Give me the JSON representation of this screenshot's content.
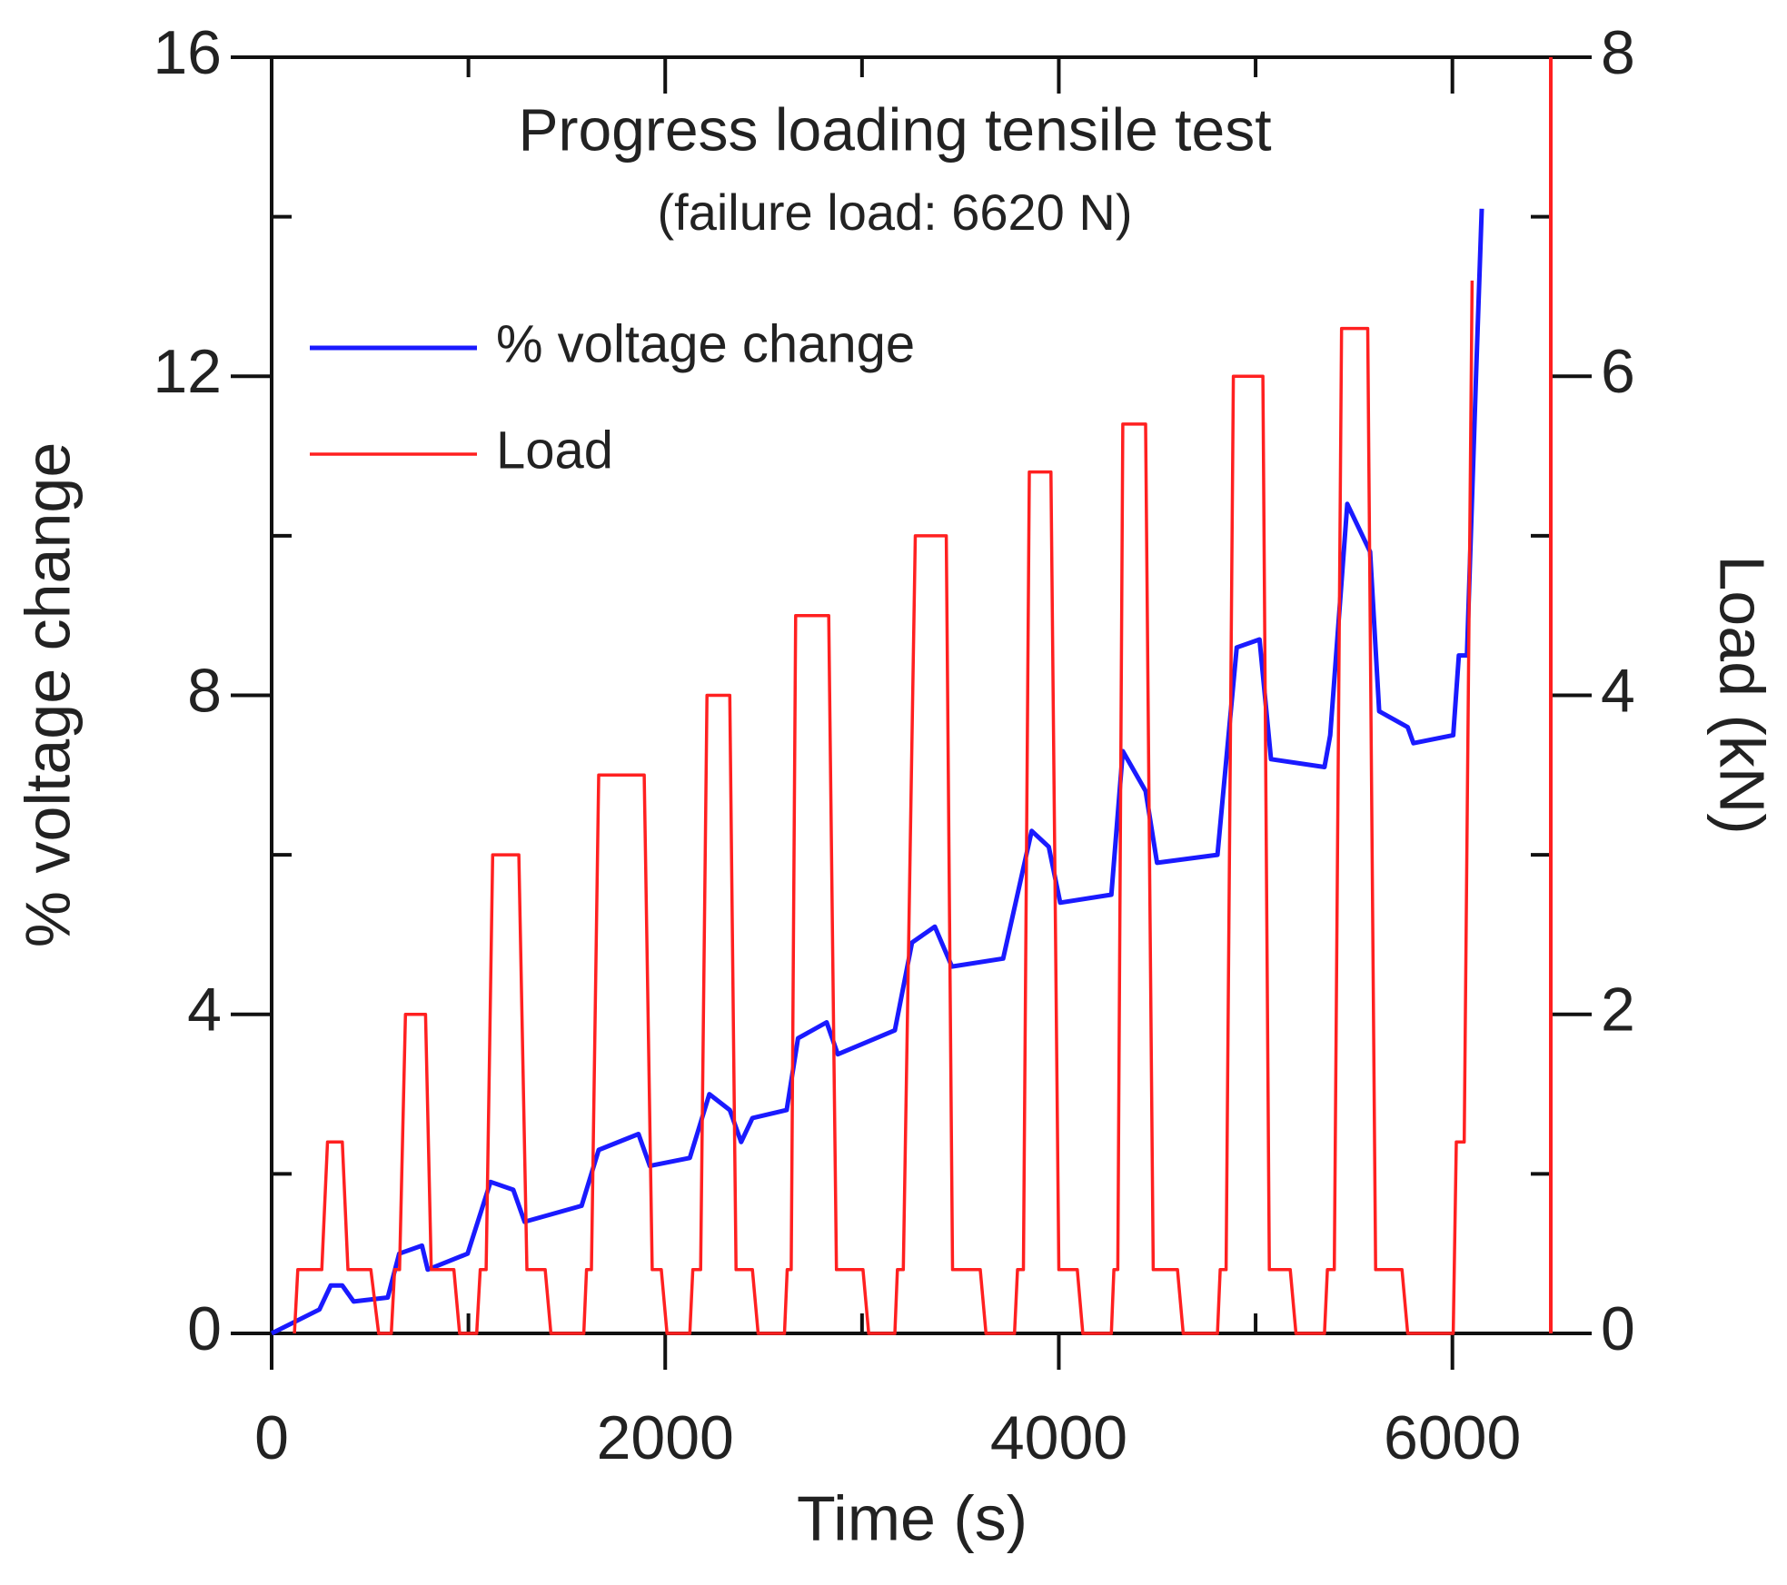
{
  "chart_data": {
    "type": "line",
    "title": "Progress loading tensile test",
    "subtitle": "(failure load: 6620 N)",
    "x_label": "Time (s)",
    "y_label": "% voltage change",
    "y2_label": "Load (kN)",
    "xlim": [
      0,
      6500
    ],
    "xticks": [
      0,
      2000,
      4000,
      6000
    ],
    "xminorticks": [
      1000,
      3000,
      5000
    ],
    "ylim": [
      0,
      16
    ],
    "yticks": [
      0,
      4,
      8,
      12,
      16
    ],
    "yminorticks": [
      2,
      6,
      10,
      14
    ],
    "y2lim": [
      0,
      8
    ],
    "y2ticks": [
      0,
      2,
      4,
      6,
      8
    ],
    "y2minorticks": [
      1,
      3,
      5,
      7
    ],
    "legend": "upper left",
    "grid": false,
    "y2_axis_color": "#ff2020",
    "series": [
      {
        "name": "% voltage change",
        "color": "#1a1aff",
        "axis": "y",
        "x": [
          0,
          243,
          300,
          359,
          417,
          590,
          648,
          764,
          793,
          996,
          1112,
          1228,
          1285,
          1575,
          1662,
          1864,
          1922,
          2125,
          2224,
          2328,
          2386,
          2443,
          2617,
          2675,
          2820,
          2877,
          3167,
          3254,
          3370,
          3457,
          3717,
          3862,
          3949,
          4007,
          4267,
          4325,
          4441,
          4499,
          4806,
          4904,
          5020,
          5078,
          5350,
          5379,
          5466,
          5582,
          5628,
          5773,
          5802,
          6004,
          6033,
          6074,
          6120,
          6149
        ],
        "values": [
          0,
          0.3,
          0.6,
          0.6,
          0.4,
          0.45,
          1.0,
          1.1,
          0.8,
          1.0,
          1.9,
          1.8,
          1.4,
          1.6,
          2.3,
          2.5,
          2.1,
          2.2,
          3.0,
          2.8,
          2.4,
          2.7,
          2.8,
          3.7,
          3.9,
          3.5,
          3.8,
          4.9,
          5.1,
          4.6,
          4.7,
          6.3,
          6.1,
          5.4,
          5.5,
          7.3,
          6.8,
          5.9,
          6.0,
          8.6,
          8.7,
          7.2,
          7.1,
          7.5,
          10.4,
          9.8,
          7.8,
          7.6,
          7.4,
          7.5,
          8.5,
          8.5,
          12.0,
          14.1
        ]
      },
      {
        "name": "Load",
        "color": "#ff2020",
        "axis": "y2",
        "x": [
          116,
          133,
          255,
          284,
          359,
          388,
          504,
          544,
          608,
          625,
          650,
          680,
          782,
          811,
          926,
          955,
          1042,
          1060,
          1090,
          1123,
          1256,
          1297,
          1390,
          1419,
          1586,
          1600,
          1625,
          1662,
          1893,
          1934,
          1980,
          2009,
          2125,
          2140,
          2180,
          2212,
          2328,
          2360,
          2443,
          2472,
          2606,
          2620,
          2640,
          2663,
          2831,
          2870,
          3005,
          3034,
          3167,
          3180,
          3210,
          3271,
          3428,
          3460,
          3601,
          3630,
          3775,
          3790,
          3820,
          3850,
          3960,
          4000,
          4094,
          4122,
          4267,
          4280,
          4300,
          4325,
          4441,
          4480,
          4603,
          4632,
          4806,
          4820,
          4850,
          4887,
          5037,
          5070,
          5176,
          5205,
          5350,
          5365,
          5400,
          5437,
          5570,
          5610,
          5744,
          5773,
          6004,
          6020,
          6060,
          6100
        ],
        "values": [
          0,
          0.4,
          0.4,
          1.2,
          1.2,
          0.4,
          0.4,
          0,
          0,
          0.4,
          0.4,
          2.0,
          2.0,
          0.4,
          0.4,
          0,
          0,
          0.4,
          0.4,
          3.0,
          3.0,
          0.4,
          0.4,
          0,
          0,
          0.4,
          0.4,
          3.5,
          3.5,
          0.4,
          0.4,
          0,
          0,
          0.4,
          0.4,
          4.0,
          4.0,
          0.4,
          0.4,
          0,
          0,
          0.4,
          0.4,
          4.5,
          4.5,
          0.4,
          0.4,
          0,
          0,
          0.4,
          0.4,
          5.0,
          5.0,
          0.4,
          0.4,
          0,
          0,
          0.4,
          0.4,
          5.4,
          5.4,
          0.4,
          0.4,
          0,
          0,
          0.4,
          0.4,
          5.7,
          5.7,
          0.4,
          0.4,
          0,
          0,
          0.4,
          0.4,
          6.0,
          6.0,
          0.4,
          0.4,
          0,
          0,
          0.4,
          0.4,
          6.3,
          6.3,
          0.4,
          0.4,
          0,
          0,
          1.2,
          1.2,
          6.6
        ]
      }
    ]
  }
}
